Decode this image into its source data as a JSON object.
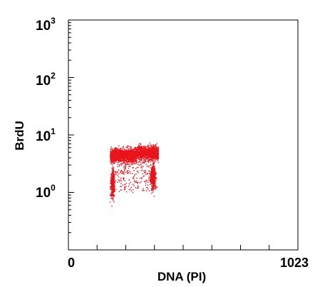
{
  "chart_data": {
    "type": "scatter",
    "title": "",
    "xlabel": "DNA (PI)",
    "ylabel": "BrdU",
    "x_scale": "linear",
    "y_scale": "log",
    "xlim": [
      0,
      1023
    ],
    "ylim": [
      0.1,
      1000
    ],
    "x_ticks": [
      {
        "value": 0,
        "label": "0"
      },
      {
        "value": 1023,
        "label": "1023"
      }
    ],
    "y_ticks": [
      {
        "value": 1,
        "base": "10",
        "exp": "0"
      },
      {
        "value": 10,
        "base": "10",
        "exp": "1"
      },
      {
        "value": 100,
        "base": "10",
        "exp": "2"
      },
      {
        "value": 1000,
        "base": "10",
        "exp": "3"
      }
    ],
    "grid": false,
    "legend": "none",
    "point_color": "#e8141c",
    "populations": [
      {
        "x_range": [
          185,
          400
        ],
        "y_center": 4.5,
        "description": "S-phase band (BrdU positive)"
      },
      {
        "x_center": 195,
        "y_center": 1.1,
        "description": "G0/G1 (BrdU negative)"
      },
      {
        "x_center": 375,
        "y_center": 1.5,
        "description": "G2/M (BrdU negative)"
      }
    ]
  }
}
